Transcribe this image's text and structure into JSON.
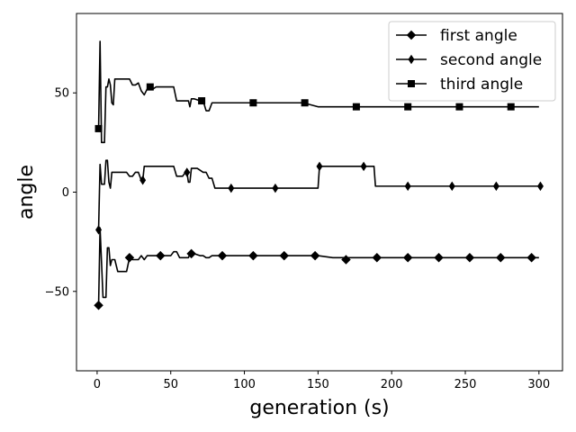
{
  "chart_data": {
    "type": "line",
    "xlabel": "generation (s)",
    "ylabel": "angle",
    "xlim": [
      -14,
      316
    ],
    "ylim": [
      -90,
      90
    ],
    "xticks": [
      0,
      50,
      100,
      150,
      200,
      250,
      300
    ],
    "yticks": [
      -50,
      0,
      50
    ],
    "legend_position": "top-right",
    "grid": false,
    "line_color": "#000000",
    "series": [
      {
        "name": "first angle",
        "marker": "D",
        "x": [
          1,
          2,
          4,
          5,
          6,
          7,
          8,
          9,
          10,
          12,
          14,
          16,
          18,
          20,
          22,
          24,
          26,
          28,
          30,
          32,
          34,
          36,
          38,
          40,
          42,
          44,
          46,
          48,
          50,
          52,
          54,
          56,
          58,
          60,
          62,
          63,
          64,
          66,
          70,
          72,
          74,
          76,
          78,
          80,
          85,
          90,
          100,
          110,
          120,
          130,
          140,
          150,
          160,
          165,
          170,
          175,
          180,
          185,
          190,
          200,
          210,
          220,
          230,
          240,
          250,
          260,
          270,
          280,
          290,
          300
        ],
        "y": [
          -57,
          -18,
          -53,
          -53,
          -53,
          -28,
          -28,
          -37,
          -34,
          -34,
          -40,
          -40,
          -40,
          -40,
          -33,
          -34,
          -34,
          -34,
          -32,
          -34,
          -32,
          -32,
          -32,
          -32,
          -32,
          -32,
          -32,
          -32,
          -32,
          -30,
          -30,
          -33,
          -33,
          -33,
          -33,
          -31,
          -31,
          -31,
          -32,
          -32,
          -33,
          -33,
          -32,
          -32,
          -32,
          -32,
          -32,
          -32,
          -32,
          -32,
          -32,
          -32,
          -33,
          -33,
          -33,
          -33,
          -33,
          -33,
          -33,
          -33,
          -33,
          -33,
          -33,
          -33,
          -33,
          -33,
          -33,
          -33,
          -33,
          -33
        ],
        "marker_x": [
          1,
          22,
          43,
          64,
          85,
          106,
          127,
          148,
          169,
          190,
          211,
          232,
          253,
          274,
          295
        ],
        "marker_y": [
          -57,
          -33,
          -32,
          -31,
          -32,
          -32,
          -32,
          -32,
          -34,
          -33,
          -33,
          -33,
          -33,
          -33,
          -33
        ]
      },
      {
        "name": "second angle",
        "marker": "d",
        "x": [
          1,
          2,
          3,
          4,
          5,
          6,
          7,
          8,
          9,
          10,
          12,
          14,
          16,
          18,
          20,
          22,
          24,
          26,
          28,
          30,
          31,
          32,
          34,
          36,
          40,
          44,
          48,
          52,
          54,
          56,
          58,
          60,
          61,
          62,
          63,
          64,
          66,
          68,
          72,
          74,
          76,
          78,
          80,
          90,
          100,
          110,
          120,
          130,
          140,
          150,
          151,
          160,
          170,
          175,
          180,
          185,
          188,
          189,
          190,
          200,
          210,
          220,
          230,
          240,
          250,
          260,
          270,
          280,
          290,
          300
        ],
        "y": [
          -19,
          14,
          4,
          4,
          4,
          16,
          16,
          5,
          2,
          10,
          10,
          10,
          10,
          10,
          10,
          8,
          8,
          10,
          10,
          6,
          6,
          13,
          13,
          13,
          13,
          13,
          13,
          13,
          8,
          8,
          8,
          10,
          10,
          5,
          5,
          12,
          12,
          12,
          10,
          10,
          7,
          7,
          2,
          2,
          2,
          2,
          2,
          2,
          2,
          2,
          13,
          13,
          13,
          13,
          13,
          13,
          13,
          3,
          3,
          3,
          3,
          3,
          3,
          3,
          3,
          3,
          3,
          3,
          3,
          3
        ],
        "marker_x": [
          1,
          31,
          61,
          91,
          121,
          151,
          181,
          211,
          241,
          271,
          301
        ],
        "marker_y": [
          -19,
          6,
          10,
          2,
          2,
          13,
          13,
          3,
          3,
          3,
          3
        ]
      },
      {
        "name": "third angle",
        "marker": "s",
        "x": [
          1,
          2,
          3,
          4,
          5,
          6,
          7,
          8,
          9,
          10,
          11,
          12,
          14,
          16,
          18,
          20,
          22,
          24,
          26,
          28,
          30,
          32,
          34,
          36,
          38,
          40,
          44,
          48,
          50,
          52,
          54,
          56,
          58,
          60,
          62,
          63,
          64,
          66,
          70,
          72,
          74,
          76,
          78,
          80,
          90,
          100,
          110,
          120,
          130,
          140,
          150,
          160,
          170,
          180,
          190,
          200,
          210,
          220,
          230,
          240,
          250,
          260,
          270,
          280,
          290,
          300
        ],
        "y": [
          32,
          76,
          25,
          25,
          25,
          53,
          53,
          57,
          54,
          45,
          44,
          57,
          57,
          57,
          57,
          57,
          57,
          54,
          54,
          55,
          51,
          49,
          52,
          52,
          52,
          53,
          53,
          53,
          53,
          53,
          46,
          46,
          46,
          46,
          46,
          43,
          47,
          47,
          46,
          46,
          41,
          41,
          45,
          45,
          45,
          45,
          45,
          45,
          45,
          45,
          43,
          43,
          43,
          43,
          43,
          43,
          43,
          43,
          43,
          43,
          43,
          43,
          43,
          43,
          43,
          43
        ],
        "marker_x": [
          1,
          36,
          71,
          106,
          141,
          176,
          211,
          246,
          281
        ],
        "marker_y": [
          32,
          53,
          46,
          45,
          45,
          43,
          43,
          43,
          43
        ]
      }
    ]
  }
}
